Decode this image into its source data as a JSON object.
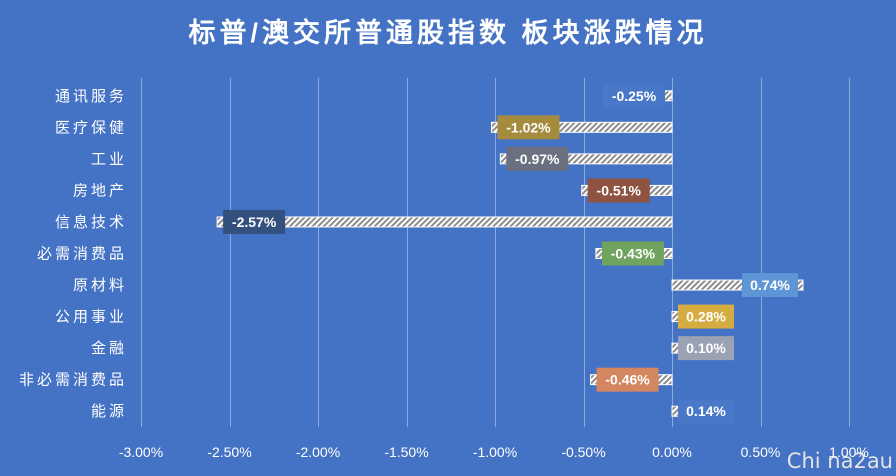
{
  "watermark": "Chi na2au",
  "colors": {
    "background": "#4472C4",
    "gridline": "#8FA9DC",
    "text": "#FFFFFF",
    "bar_fill": "#FFFFFF",
    "bar_hatch": "#8C8C8C"
  },
  "chart_data": {
    "type": "bar",
    "orientation": "horizontal",
    "title": "标普/澳交所普通股指数 板块涨跌情况",
    "xlabel": "",
    "ylabel": "",
    "categories": [
      "通讯服务",
      "医疗保健",
      "工业",
      "房地产",
      "信息技术",
      "必需消费品",
      "原材料",
      "公用事业",
      "金融",
      "非必需消费品",
      "能源"
    ],
    "values": [
      -0.25,
      -1.02,
      -0.97,
      -0.51,
      -2.57,
      -0.43,
      0.74,
      0.28,
      0.1,
      -0.46,
      0.14
    ],
    "value_unit": "%",
    "data_labels": [
      "-0.25%",
      "-1.02%",
      "-0.97%",
      "-0.51%",
      "-2.57%",
      "-0.43%",
      "0.74%",
      "0.28%",
      "0.10%",
      "-0.46%",
      "0.14%"
    ],
    "label_colors": [
      "#4A78C8",
      "#A48B3E",
      "#6A7080",
      "#8E5441",
      "#33507F",
      "#6FA35E",
      "#5E95D6",
      "#D4AC3F",
      "#9AA2B4",
      "#D48660",
      "#4A78C8"
    ],
    "xlim": [
      -3,
      1
    ],
    "x_tick_values": [
      -3,
      -2.5,
      -2,
      -1.5,
      -1,
      -0.5,
      0,
      0.5,
      1
    ],
    "x_ticks": [
      "-3.00%",
      "-2.50%",
      "-2.00%",
      "-1.50%",
      "-1.00%",
      "-0.50%",
      "0.00%",
      "0.50%",
      "1.00%"
    ],
    "grid": "vertical",
    "legend": "none"
  }
}
